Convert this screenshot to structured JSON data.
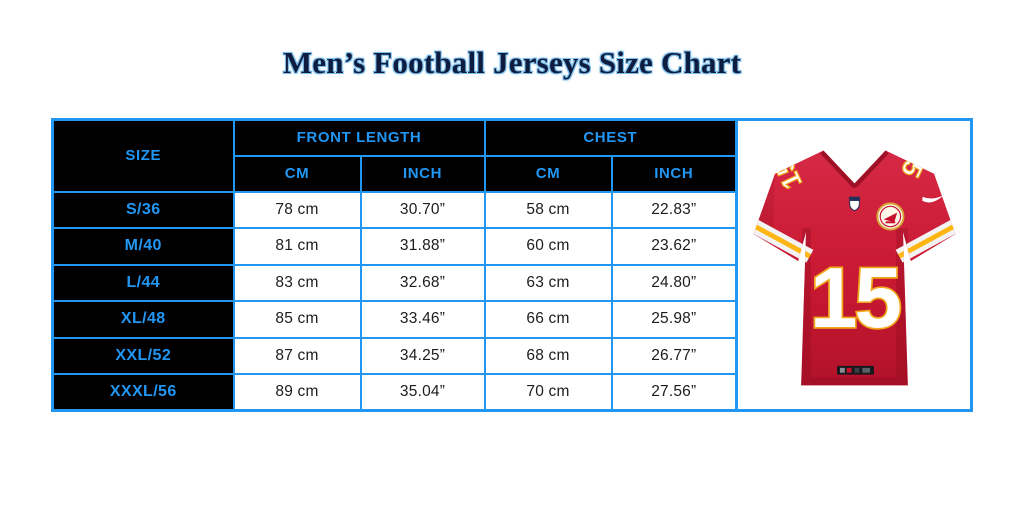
{
  "title": "Men’s Football Jerseys Size Chart",
  "table": {
    "size_header": "SIZE",
    "group_headers": [
      "FRONT LENGTH",
      "CHEST"
    ],
    "sub_headers": [
      "CM",
      "INCH",
      "CM",
      "INCH"
    ],
    "rows": [
      {
        "size": "S/36",
        "values": [
          "78 cm",
          "30.70”",
          "58 cm",
          "22.83”"
        ]
      },
      {
        "size": "M/40",
        "values": [
          "81 cm",
          "31.88”",
          "60 cm",
          "23.62”"
        ]
      },
      {
        "size": "L/44",
        "values": [
          "83 cm",
          "32.68”",
          "63 cm",
          "24.80”"
        ]
      },
      {
        "size": "XL/48",
        "values": [
          "85 cm",
          "33.46”",
          "66 cm",
          "25.98”"
        ]
      },
      {
        "size": "XXL/52",
        "values": [
          "87 cm",
          "34.25”",
          "68 cm",
          "26.77”"
        ]
      },
      {
        "size": "XXXL/56",
        "values": [
          "89 cm",
          "35.04”",
          "70 cm",
          "27.56”"
        ]
      }
    ]
  },
  "jersey": {
    "number": "15",
    "description": "red football jersey, number 15, white number with gold outline, striped sleeves"
  },
  "colors": {
    "accent": "#2196f3",
    "table_black": "#000000",
    "title_navy": "#0d1c3f",
    "title_halo": "#7fc0ec",
    "cell_text": "#1b1c1e",
    "jersey_red": "#ca1b38",
    "jersey_dark": "#9e1026",
    "gold": "#ffb612"
  },
  "chart_data": {
    "type": "table",
    "title": "Men’s Football Jerseys Size Chart",
    "columns": [
      "SIZE",
      "FRONT LENGTH (CM)",
      "FRONT LENGTH (INCH)",
      "CHEST (CM)",
      "CHEST (INCH)"
    ],
    "rows": [
      [
        "S/36",
        "78 cm",
        "30.70”",
        "58 cm",
        "22.83”"
      ],
      [
        "M/40",
        "81 cm",
        "31.88”",
        "60 cm",
        "23.62”"
      ],
      [
        "L/44",
        "83 cm",
        "32.68”",
        "63 cm",
        "24.80”"
      ],
      [
        "XL/48",
        "85 cm",
        "33.46”",
        "66 cm",
        "25.98”"
      ],
      [
        "XXL/52",
        "87 cm",
        "34.25”",
        "68 cm",
        "26.77”"
      ],
      [
        "XXXL/56",
        "89 cm",
        "35.04”",
        "70 cm",
        "27.56”"
      ]
    ]
  }
}
